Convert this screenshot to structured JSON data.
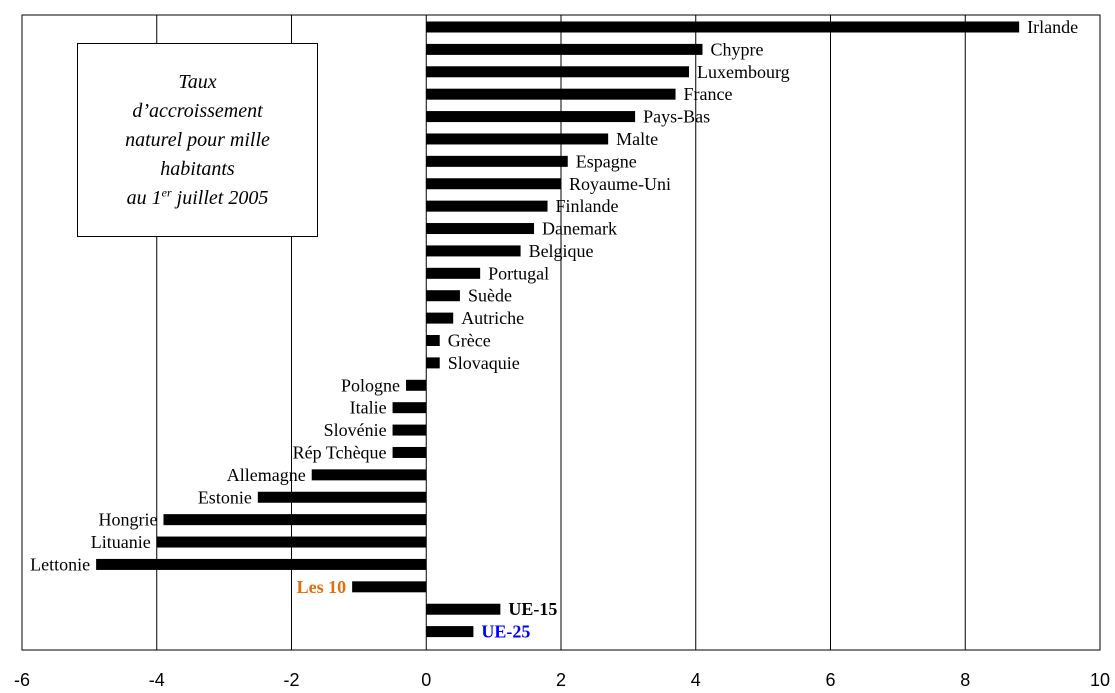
{
  "chart_data": {
    "type": "bar",
    "orientation": "horizontal",
    "title_lines": [
      "Taux",
      "d’accroissement",
      "naturel pour mille",
      "habitants"
    ],
    "title_last_line": {
      "prefix": "au 1",
      "superscript": "er",
      "suffix": " juillet 2005"
    },
    "xlim": [
      -6,
      10
    ],
    "x_ticks": [
      "-6",
      "-4",
      "-2",
      "0",
      "2",
      "4",
      "6",
      "8",
      "10"
    ],
    "grid": "vertical",
    "categories": [
      "Irlande",
      "Chypre",
      "Luxembourg",
      "France",
      "Pays-Bas",
      "Malte",
      "Espagne",
      "Royaume-Uni",
      "Finlande",
      "Danemark",
      "Belgique",
      "Portugal",
      "Suède",
      "Autriche",
      "Grèce",
      "Slovaquie",
      "Pologne",
      "Italie",
      "Slovénie",
      "Rép Tchèque",
      "Allemagne",
      "Estonie",
      "Hongrie",
      "Lituanie",
      "Lettonie",
      "Les 10",
      "UE-15",
      "UE-25"
    ],
    "values": [
      8.8,
      4.1,
      3.9,
      3.7,
      3.1,
      2.7,
      2.1,
      2.0,
      1.8,
      1.6,
      1.4,
      0.8,
      0.5,
      0.4,
      0.2,
      0.2,
      -0.3,
      -0.5,
      -0.5,
      -0.5,
      -1.7,
      -2.5,
      -3.9,
      -4.0,
      -4.9,
      -1.1,
      1.1,
      0.7
    ],
    "label_colors": {
      "Les 10": "#E46C0A",
      "UE-15": "#000000",
      "UE-25": "#0000FF"
    },
    "bar_color": "#000000"
  }
}
